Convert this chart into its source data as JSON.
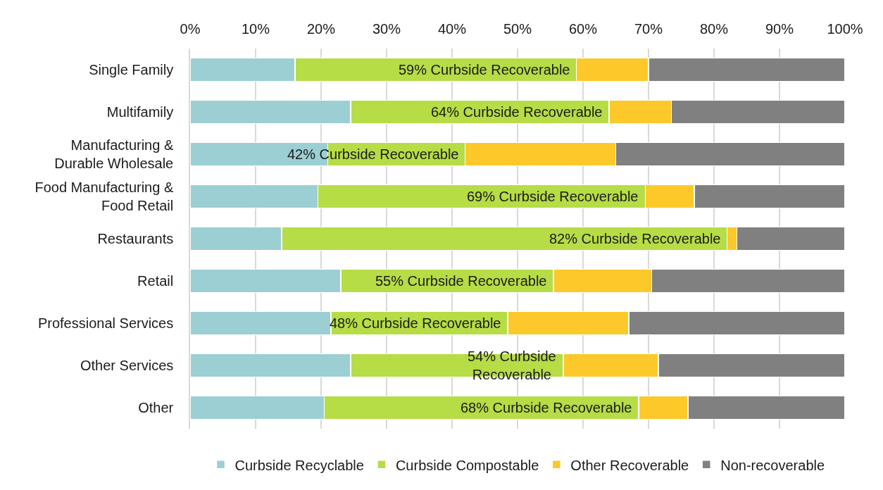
{
  "chart_data": {
    "type": "bar",
    "orientation": "horizontal",
    "stacked": true,
    "categories": [
      "Single Family",
      "Multifamily",
      "Manufacturing &\nDurable Wholesale",
      "Food Manufacturing &\nFood Retail",
      "Restaurants",
      "Retail",
      "Professional Services",
      "Other Services",
      "Other"
    ],
    "series": [
      {
        "name": "Curbside Recyclable",
        "color": "#9bcfd4",
        "values": [
          16,
          24.5,
          21,
          19.5,
          14,
          23,
          21.5,
          24.5,
          20.5
        ]
      },
      {
        "name": "Curbside Compostable",
        "color": "#b6dc46",
        "values": [
          43,
          39.5,
          21,
          50,
          68,
          32.5,
          27,
          32.5,
          48
        ]
      },
      {
        "name": "Other Recoverable",
        "color": "#fdc82a",
        "values": [
          11,
          9.5,
          23,
          7.5,
          1.5,
          15,
          18.5,
          14.5,
          7.5
        ]
      },
      {
        "name": "Non-recoverable",
        "color": "#808080",
        "values": [
          30,
          26.5,
          35,
          23,
          16.5,
          29.5,
          33,
          28.5,
          24
        ]
      }
    ],
    "xlim": [
      0,
      100
    ],
    "xticks": [
      {
        "value": 0,
        "label": "0%"
      },
      {
        "value": 10,
        "label": "10%"
      },
      {
        "value": 20,
        "label": "20%"
      },
      {
        "value": 30,
        "label": "30%"
      },
      {
        "value": 40,
        "label": "40%"
      },
      {
        "value": 50,
        "label": "50%"
      },
      {
        "value": 60,
        "label": "60%"
      },
      {
        "value": 70,
        "label": "70%"
      },
      {
        "value": 80,
        "label": "80%"
      },
      {
        "value": 90,
        "label": "90%"
      },
      {
        "value": 100,
        "label": "100%"
      }
    ],
    "grid": "x",
    "legend": "bottom",
    "annotations": [
      {
        "text": "59% Curbside Recoverable",
        "x": 59,
        "y": "Single Family"
      },
      {
        "text": "64% Curbside Recoverable",
        "x": 64,
        "y": "Multifamily"
      },
      {
        "text": "42% Curbside Recoverable",
        "x": 42,
        "y": "Manufacturing &\nDurable Wholesale"
      },
      {
        "text": "69% Curbside Recoverable",
        "x": 69.5,
        "y": "Food Manufacturing &\nFood Retail"
      },
      {
        "text": "82% Curbside Recoverable",
        "x": 82,
        "y": "Restaurants"
      },
      {
        "text": "55% Curbside Recoverable",
        "x": 55.5,
        "y": "Retail"
      },
      {
        "text": "48% Curbside Recoverable",
        "x": 48.5,
        "y": "Professional Services"
      },
      {
        "text": "54% Curbside\nRecoverable",
        "x": 57,
        "y": "Other Services"
      },
      {
        "text": "68% Curbside Recoverable",
        "x": 68.5,
        "y": "Other"
      }
    ]
  }
}
